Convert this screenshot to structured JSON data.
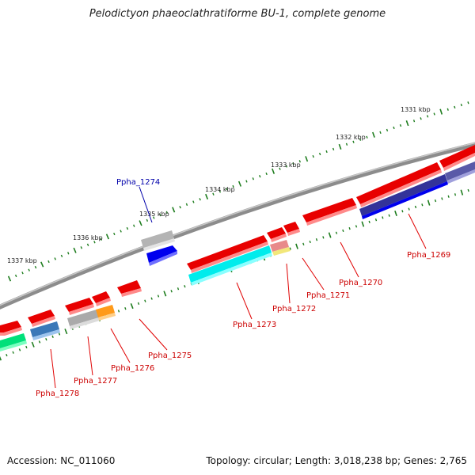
{
  "title": "Pelodictyon phaeoclathratiforme BU-1, complete genome",
  "footer": {
    "accession": "Accession: NC_011060",
    "summary": "Topology: circular; Length: 3,018,238 bp; Genes: 2,765"
  },
  "colors": {
    "backbone": "#8c8c8c",
    "tick": "#1e7d1e",
    "label_red": "#cc0000",
    "label_blue": "#0000aa",
    "leader": "#e00000"
  },
  "ruler_labels": [
    {
      "kbp": 1331,
      "label": "1331 kbp"
    },
    {
      "kbp": 1332,
      "label": "1332 kbp"
    },
    {
      "kbp": 1333,
      "label": "1333 kbp"
    },
    {
      "kbp": 1334,
      "label": "1334 kbp"
    },
    {
      "kbp": 1335,
      "label": "1335 kbp"
    },
    {
      "kbp": 1336,
      "label": "1336 kbp"
    },
    {
      "kbp": 1337,
      "label": "1337 kbp"
    }
  ],
  "gene_labels": [
    {
      "name": "Ppha_1269",
      "color": "red"
    },
    {
      "name": "Ppha_1270",
      "color": "red"
    },
    {
      "name": "Ppha_1271",
      "color": "red"
    },
    {
      "name": "Ppha_1272",
      "color": "red"
    },
    {
      "name": "Ppha_1273",
      "color": "red"
    },
    {
      "name": "Ppha_1274",
      "color": "blue"
    },
    {
      "name": "Ppha_1275",
      "color": "red"
    },
    {
      "name": "Ppha_1276",
      "color": "red"
    },
    {
      "name": "Ppha_1277",
      "color": "red"
    },
    {
      "name": "Ppha_1278",
      "color": "red"
    }
  ]
}
